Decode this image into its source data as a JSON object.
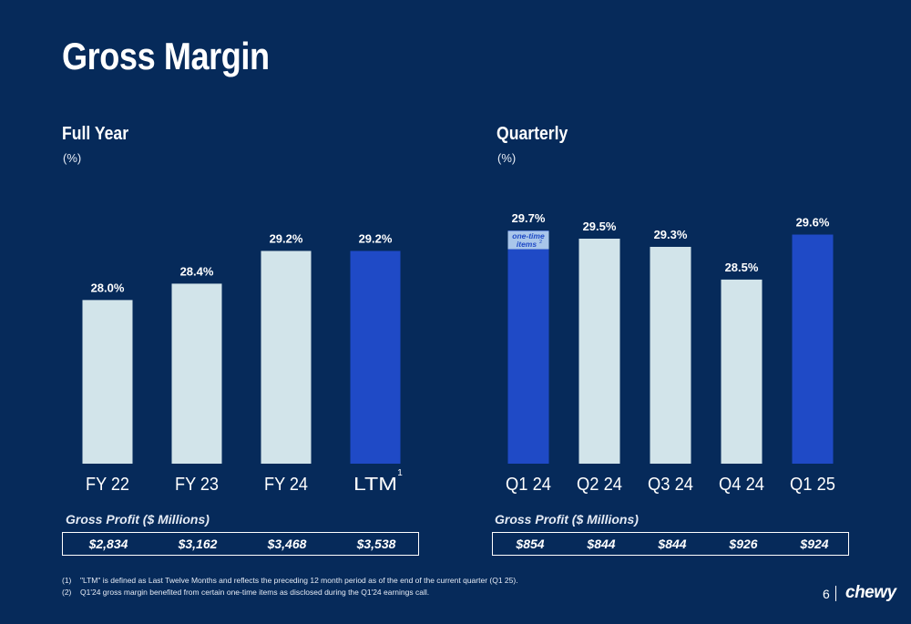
{
  "page": {
    "title": "Gross Margin",
    "page_number": "6",
    "logo": "chewy"
  },
  "colors": {
    "background": "#062a5a",
    "bar_light": "#d2e4ea",
    "bar_highlight": "#1f4ac6",
    "one_time_box": "#a9c6ea",
    "one_time_text": "#1f4ac6"
  },
  "chart_data": [
    {
      "type": "bar",
      "title": "Full Year",
      "unit": "(%)",
      "categories": [
        "FY 22",
        "FY 23",
        "FY 24",
        "LTM"
      ],
      "values": [
        28.0,
        28.4,
        29.2,
        29.2
      ],
      "value_labels": [
        "28.0%",
        "28.4%",
        "29.2%",
        "29.2%"
      ],
      "highlight": [
        false,
        false,
        false,
        true
      ],
      "category_superscripts": [
        "",
        "",
        "",
        "1"
      ],
      "ylim": [
        24.0,
        29.5
      ]
    },
    {
      "type": "bar",
      "title": "Quarterly",
      "unit": "(%)",
      "categories": [
        "Q1 24",
        "Q2 24",
        "Q3 24",
        "Q4 24",
        "Q1 25"
      ],
      "values": [
        29.7,
        29.5,
        29.3,
        28.5,
        29.6
      ],
      "value_labels": [
        "29.7%",
        "29.5%",
        "29.3%",
        "28.5%",
        "29.6%"
      ],
      "highlight": [
        true,
        false,
        false,
        false,
        true
      ],
      "category_superscripts": [
        "",
        "",
        "",
        "",
        ""
      ],
      "annotation": {
        "category_index": 0,
        "text_line1": "one-time",
        "text_line2": "items",
        "superscript": "2"
      },
      "ylim": [
        24.0,
        29.5
      ]
    }
  ],
  "gross_profit": {
    "full_year": {
      "label": "Gross Profit ($ Millions)",
      "values": [
        "$2,834",
        "$3,162",
        "$3,468",
        "$3,538"
      ]
    },
    "quarterly": {
      "label": "Gross Profit ($ Millions)",
      "values": [
        "$854",
        "$844",
        "$844",
        "$926",
        "$924"
      ]
    }
  },
  "footnotes": [
    {
      "num": "(1)",
      "text": "\"LTM\" is defined as Last Twelve Months and reflects the preceding 12 month period as of the end of the current quarter (Q1 25)."
    },
    {
      "num": "(2)",
      "text": "Q1'24 gross margin benefited from certain one-time items as disclosed during the Q1'24 earnings call."
    }
  ]
}
